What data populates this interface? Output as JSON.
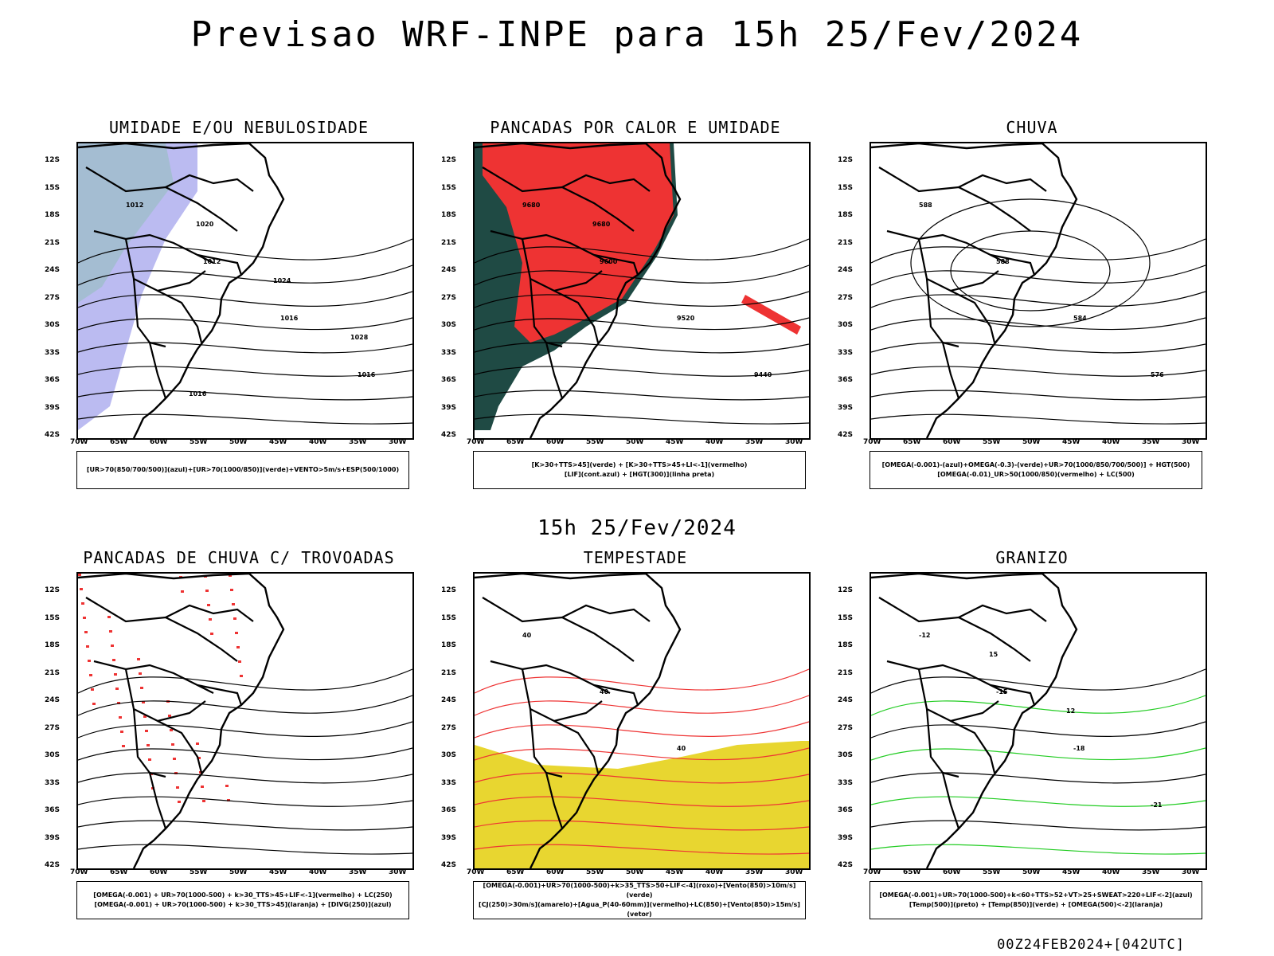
{
  "header": {
    "title": "Previsao WRF-INPE  para 15h 25/Fev/2024"
  },
  "midtitle": "15h 25/Fev/2024",
  "footer": "00Z24FEB2024+[042UTC]",
  "lat_labels": [
    "12S",
    "15S",
    "18S",
    "21S",
    "24S",
    "27S",
    "30S",
    "33S",
    "36S",
    "39S",
    "42S"
  ],
  "lon_labels": [
    "70W",
    "65W",
    "60W",
    "55W",
    "50W",
    "45W",
    "40W",
    "35W",
    "30W"
  ],
  "panels": [
    {
      "title": "UMIDADE E/OU NEBULOSIDADE",
      "legend": [
        "[UR>70(850/700/500)](azul)+[UR>70(1000/850)](verde)+VENTO>5m/s+ESP(500/1000)"
      ],
      "contour_labels": [
        "1012",
        "1012",
        "1016",
        "1016",
        "1020",
        "1024",
        "1028",
        "1016"
      ]
    },
    {
      "title": "PANCADAS POR CALOR E UMIDADE",
      "legend": [
        "[K>30+TTS>45](verde) + [K>30+TTS>45+LI<-1](vermelho)",
        "[LIF](cont.azul) + [HGT(300)](linha preta)"
      ],
      "contour_labels": [
        "9680",
        "9600",
        "9520",
        "9440",
        "9680"
      ]
    },
    {
      "title": "CHUVA",
      "legend": [
        "[OMEGA(-0.001)-(azul)+OMEGA(-0.3)-(verde)+UR>70(1000/850/700/500)] + HGT(500)",
        "[OMEGA(-0.01)_UR>50(1000/850)(vermelho) + LC(500)"
      ],
      "contour_labels": [
        "588",
        "588",
        "584",
        "576"
      ]
    },
    {
      "title": "PANCADAS DE CHUVA C/ TROVOADAS",
      "legend": [
        "[OMEGA(-0.001) + UR>70(1000-500) + k>30_TTS>45+LIF<-1](vermelho) + LC(250)",
        "[OMEGA(-0.001) + UR>70(1000-500) + k>30_TTS>45](laranja) + [DIVG(250)](azul)"
      ],
      "contour_labels": []
    },
    {
      "title": "TEMPESTADE",
      "legend": [
        "[OMEGA(-0.001)+UR>70(1000-500)+k>35_TTS>50+LIF<-4](roxo)+[Vento(850)>10m/s](verde)",
        "[CJ(250)>30m/s](amarelo)+[Agua_P(40-60mm)](vermelho)+LC(850)+[Vento(850)>15m/s](vetor)"
      ],
      "contour_labels": [
        "40",
        "40",
        "40"
      ]
    },
    {
      "title": "GRANIZO",
      "legend": [
        "[OMEGA(-0.001)+UR>70(1000-500)+k<60+TTS>52+VT>25+SWEAT>220+LIF<-2](azul)",
        "[Temp(500)](preto) + [Temp(850)](verde) + [OMEGA(500)<-2](laranja)"
      ],
      "contour_labels": [
        "-12",
        "-15",
        "-18",
        "-21",
        "15",
        "12"
      ]
    }
  ],
  "colors": {
    "green": "#22cc22",
    "blue": "#3344ee",
    "red": "#ee3333",
    "lavender": "#aaaaee",
    "darkgreen": "#1f4a44",
    "yellow": "#e8d630",
    "orange": "#ee8822"
  }
}
